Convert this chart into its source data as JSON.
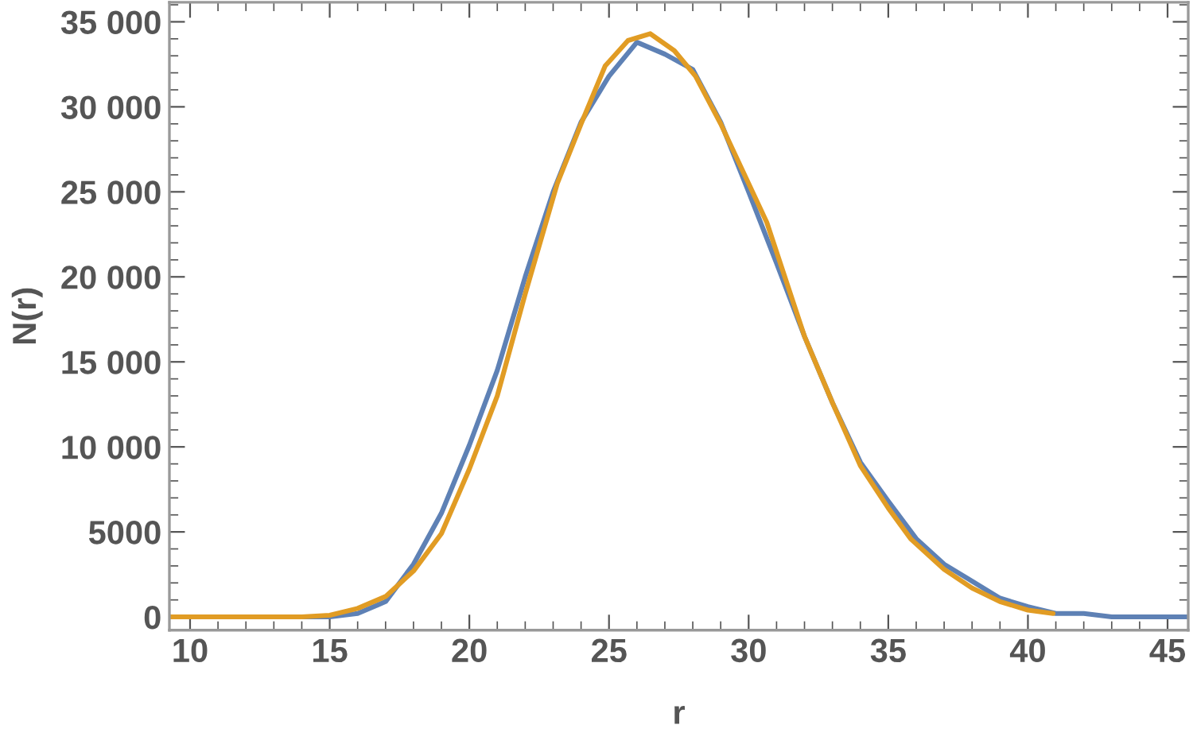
{
  "chart_data": {
    "type": "line",
    "xlabel": "r",
    "ylabel": "N(r)",
    "xlim": [
      9.26,
      45.74
    ],
    "xticks": [
      10,
      15,
      20,
      25,
      30,
      35,
      40,
      45
    ],
    "ylim": [
      -780,
      36150
    ],
    "yticks": [
      0,
      5000,
      {
        "value": 10000,
        "label": "10 000"
      },
      {
        "value": 15000,
        "label": "15 000"
      },
      {
        "value": 20000,
        "label": "20 000"
      },
      {
        "value": 25000,
        "label": "25 000"
      },
      {
        "value": 30000,
        "label": "30 000"
      },
      {
        "value": 35000,
        "label": "35 000"
      }
    ],
    "grid": false,
    "legend": false,
    "marker": "none",
    "line_style": "solid",
    "series": [
      {
        "color": "#5e81b5",
        "x": [
          14,
          15,
          16,
          17,
          18,
          19,
          20,
          21,
          22,
          23,
          24,
          25,
          26,
          27,
          28,
          29,
          30,
          31,
          32,
          33,
          34,
          35,
          36,
          37,
          38,
          39,
          40,
          41,
          42,
          43,
          44,
          45,
          45.74
        ],
        "values": [
          0,
          0,
          200,
          900,
          3100,
          6100,
          10100,
          14500,
          20000,
          25000,
          29100,
          31800,
          33800,
          33100,
          32200,
          29100,
          25000,
          20800,
          16500,
          12600,
          9100,
          6800,
          4600,
          3100,
          2100,
          1100,
          600,
          200,
          200,
          0,
          0,
          0,
          0
        ]
      },
      {
        "color": "#e19c24",
        "x": [
          9.26,
          14,
          15,
          16,
          17,
          18,
          19,
          20,
          21,
          22,
          23.15,
          24,
          24.86,
          25.68,
          26.48,
          27.34,
          28.1,
          29,
          30.65,
          32,
          33,
          34,
          35,
          35.8,
          37,
          38,
          39,
          40,
          40.9
        ],
        "values": [
          0,
          0,
          100,
          500,
          1200,
          2700,
          4900,
          8700,
          13000,
          19000,
          25500,
          29000,
          32400,
          33900,
          34300,
          33300,
          31800,
          29000,
          23200,
          16500,
          12600,
          8900,
          6400,
          4600,
          2800,
          1700,
          900,
          400,
          200
        ]
      }
    ]
  }
}
